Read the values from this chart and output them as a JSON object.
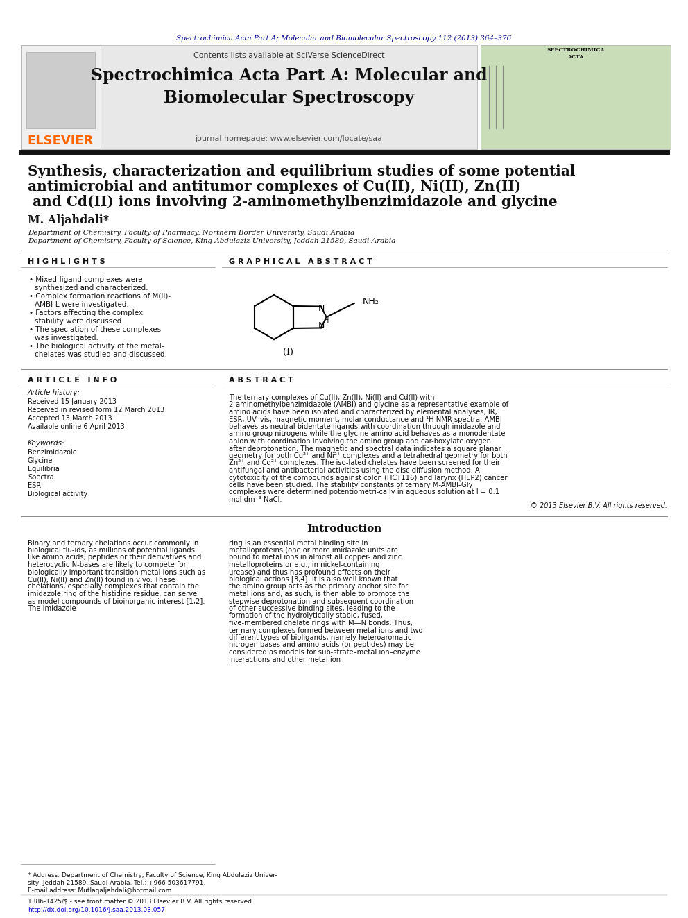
{
  "page_background": "#ffffff",
  "header_citation": "Spectrochimica Acta Part A; Molecular and Biomolecular Spectroscopy 112 (2013) 364–376",
  "header_citation_color": "#00008B",
  "journal_header_bg": "#e8e8e8",
  "journal_title": "Spectrochimica Acta Part A: Molecular and\nBiomolecular Spectroscopy",
  "journal_subtitle": "journal homepage: www.elsevier.com/locate/saa",
  "contents_text": "Contents lists available at ",
  "sciverse_text": "SciVerse ScienceDirect",
  "sciverse_color": "#FF8C00",
  "elsevier_color": "#FF6600",
  "paper_title_line1": "Synthesis, characterization and equilibrium studies of some potential",
  "paper_title_line2": "antimicrobial and antitumor complexes of Cu(II), Ni(II), Zn(II)",
  "paper_title_line3": " and Cd(II) ions involving 2-aminomethylbenzimidazole and glycine",
  "author": "M. Aljahdali",
  "author_star": "*",
  "affiliation1": "Department of Chemistry, Faculty of Pharmacy, Northern Border University, Saudi Arabia",
  "affiliation2": "Department of Chemistry, Faculty of Science, King Abdulaziz University, Jeddah 21589, Saudi Arabia",
  "highlights_title": "H I G H L I G H T S",
  "highlights": [
    "Mixed-ligand complexes were\nsynthesized and characterized.",
    "Complex formation reactions of M(II)-\nAMBI-L were investigated.",
    "Factors affecting the complex\nstability were discussed.",
    "The speciation of these complexes\nwas investigated.",
    "The biological activity of the metal-\nchelates was studied and discussed."
  ],
  "graphical_abstract_title": "G R A P H I C A L   A B S T R A C T",
  "article_info_title": "A R T I C L E   I N F O",
  "article_history_title": "Article history:",
  "received": "Received 15 January 2013",
  "revised": "Received in revised form 12 March 2013",
  "accepted": "Accepted 13 March 2013",
  "online": "Available online 6 April 2013",
  "keywords_title": "Keywords:",
  "keywords": [
    "Benzimidazole",
    "Glycine",
    "Equilibria",
    "Spectra",
    "ESR",
    "Biological activity"
  ],
  "abstract_title": "A B S T R A C T",
  "abstract_text": "The ternary complexes of Cu(II), Zn(II), Ni(II) and Cd(II) with 2-aminomethylbenzimidazole (AMBI) and glycine as a representative example of amino acids have been isolated and characterized by elemental analyses, IR, ESR, UV–vis, magnetic moment, molar conductance and ¹H NMR spectra. AMBI behaves as neutral bidentate ligands with coordination through imidazole and amino group nitrogens while the glycine amino acid behaves as a monodentate anion with coordination involving the amino group and car-boxylate oxygen after deprotonation. The magnetic and spectral data indicates a square planar geometry for both Cu²⁺ and Ni²⁺ complexes and a tetrahedral geometry for both Zn²⁺ and Cd²⁺ complexes. The iso-lated chelates have been screened for their antifungal and antibacterial activities using the disc diffusion method. A cytotoxicity of the compounds against colon (HCT116) and larynx (HEP2) cancer cells have been studied. The stability constants of ternary M-AMBI-Gly complexes were determined potentiometri-cally in aqueous solution at I = 0.1 mol dm⁻³ NaCl.",
  "copyright": "© 2013 Elsevier B.V. All rights reserved.",
  "intro_title": "Introduction",
  "intro_text_left": "   Binary and ternary chelations occur commonly in biological flu-ids, as millions of potential ligands like amino acids, peptides or their derivatives and heterocyclic N-bases are likely to compete for biologically important transition metal ions such as Cu(II), Ni(II) and Zn(II) found in vivo. These chelations, especially complexes that contain the imidazole ring of the histidine residue, can serve as model compounds of bioinorganic interest [1,2]. The imidazole",
  "intro_text_right": "ring is an essential metal binding site in metalloproteins (one or more imidazole units are bound to metal ions in almost all copper- and zinc metalloproteins or e.g., in nickel-containing urease) and thus has profound effects on their biological actions [3,4]. It is also well known that the amino group acts as the primary anchor site for metal ions and, as such, is then able to promote the stepwise deprotonation and subsequent coordination of other successive binding sites, leading to the formation of the hydrolytically stable, fused, five-membered chelate rings with M—N bonds. Thus, ter-nary complexes formed between metal ions and two different types of bioligands, namely heteroaromatic nitrogen bases and amino acids (or peptides) may be considered as models for sub-strate–metal ion–enzyme interactions and other metal ion",
  "footer_left": "1386-1425/$ - see front matter © 2013 Elsevier B.V. All rights reserved.",
  "footer_doi": "http://dx.doi.org/10.1016/j.saa.2013.03.057",
  "footnote_address": "* Address: Department of Chemistry, Faculty of Science, King Abdulaziz Univer-\nsity, Jeddah 21589, Saudi Arabia. Tel.: +966 503617791.",
  "footnote_email": "E-mail address: Mutlaqaljahdali@hotmail.com"
}
